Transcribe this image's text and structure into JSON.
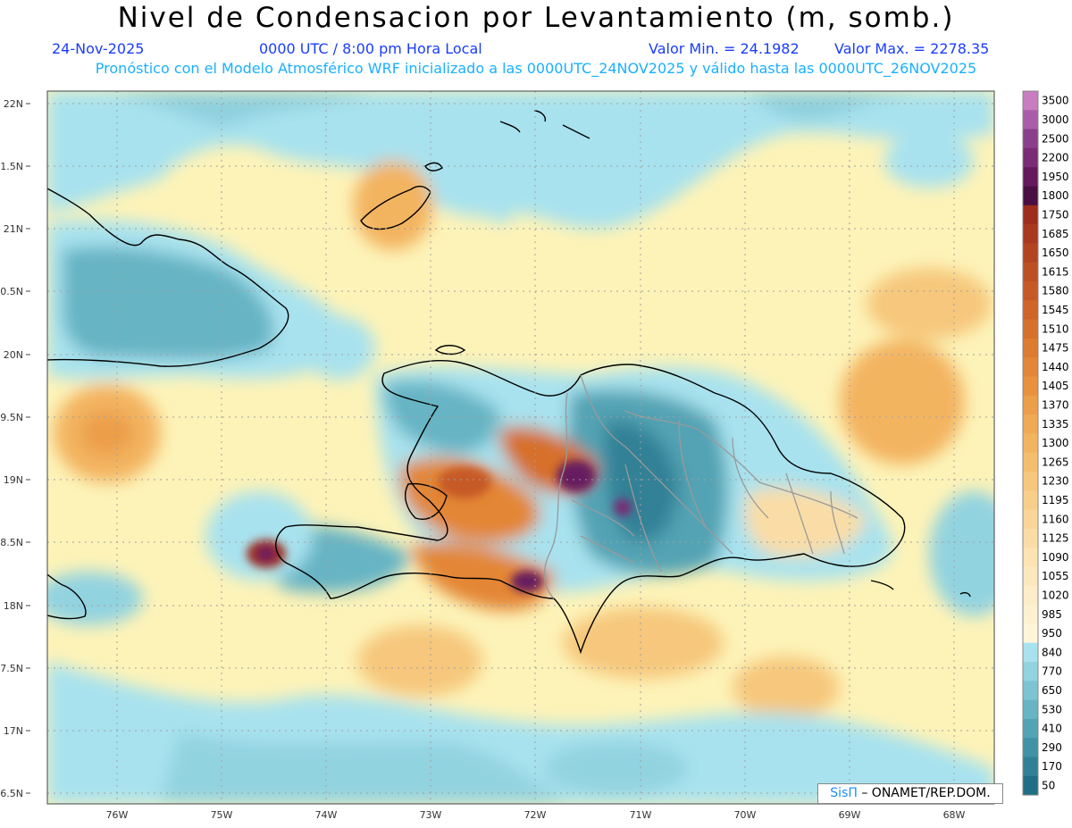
{
  "header": {
    "title": "Nivel de Condensacion por Levantamiento (m, somb.)",
    "date": "24-Nov-2025",
    "time": "0000 UTC / 8:00 pm Hora Local",
    "valmin": "Valor Min. = 24.1982",
    "valmax": "Valor Max. = 2278.35",
    "forecast": "Pronóstico con el Modelo Atmosférico WRF inicializado a las 0000UTC_24NOV2025 y válido hasta las  0000UTC_26NOV2025"
  },
  "axes": {
    "lat_labels": [
      "22N",
      "1.5N",
      "21N",
      "0.5N",
      "20N",
      "9.5N",
      "19N",
      "8.5N",
      "18N",
      "7.5N",
      "17N",
      "6.5N"
    ],
    "lon_labels": [
      "76W",
      "75W",
      "74W",
      "73W",
      "72W",
      "71W",
      "70W",
      "69W",
      "68W"
    ]
  },
  "legend": {
    "labels": [
      "3500",
      "3000",
      "2500",
      "2200",
      "1950",
      "1800",
      "1750",
      "1685",
      "1650",
      "1615",
      "1580",
      "1545",
      "1510",
      "1475",
      "1440",
      "1405",
      "1370",
      "1335",
      "1300",
      "1265",
      "1230",
      "1195",
      "1160",
      "1125",
      "1090",
      "1055",
      "1020",
      "985",
      "950",
      "840",
      "770",
      "650",
      "530",
      "410",
      "290",
      "170",
      "50"
    ],
    "colors": [
      "#c77dc0",
      "#a95da8",
      "#8a3f8a",
      "#7a2c74",
      "#661a5e",
      "#4a0f42",
      "#9e2e1c",
      "#a8381e",
      "#b24420",
      "#bc5023",
      "#c65a26",
      "#cf6528",
      "#d6702c",
      "#dd7b30",
      "#e38636",
      "#e8923e",
      "#ec9e48",
      "#f0a954",
      "#f3b460",
      "#f5be6e",
      "#f6c77c",
      "#f8cf8a",
      "#f9d698",
      "#fadda6",
      "#fbe3b2",
      "#fce8be",
      "#fdedc8",
      "#fef1d0",
      "#fff5d8",
      "#a8e2ee",
      "#92d3e0",
      "#7cc4d2",
      "#66b4c4",
      "#52a3b4",
      "#4092a5",
      "#308196",
      "#1f6e85"
    ]
  },
  "credit": {
    "brand": "SisΠ",
    "text": "– ONAMET/REP.DOM."
  }
}
